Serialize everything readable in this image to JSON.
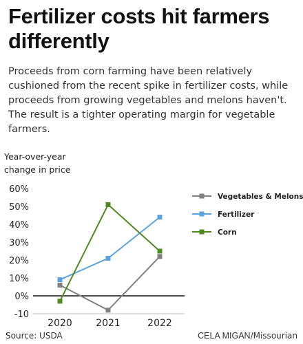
{
  "header": {
    "title": "Fertilizer costs hit farmers differently",
    "subtitle": "Proceeds from corn farming have been relatively cushioned from the recent spike in fertilizer costs, while proceeds from growing vegetables and melons haven't. The result is a tighter operating margin for vegetable farmers."
  },
  "footer": {
    "source": "Source: USDA",
    "credit_name": "CELA MIGAN",
    "credit_org": "/Missourian"
  },
  "chart_data": {
    "type": "line",
    "title": "Fertilizer costs hit farmers differently",
    "ylabel_lines": [
      "Year-over-year",
      "change in price"
    ],
    "x": [
      "2020",
      "2021",
      "2022"
    ],
    "y_ticks": [
      "60%",
      "50%",
      "40%",
      "30%",
      "20%",
      "10%",
      "0%",
      "-10"
    ],
    "y_tick_values": [
      60,
      50,
      40,
      30,
      20,
      10,
      0,
      -10
    ],
    "ylim": [
      -10,
      60
    ],
    "grid": false,
    "zero_line": true,
    "legend_position": "right",
    "series": [
      {
        "name": "Vegetables & Melons",
        "color": "#808080",
        "values": [
          6,
          -8,
          22
        ]
      },
      {
        "name": "Fertilizer",
        "color": "#5ba3e0",
        "values": [
          9,
          21,
          44
        ]
      },
      {
        "name": "Corn",
        "color": "#4e8a1e",
        "values": [
          -3,
          51,
          25
        ]
      }
    ]
  }
}
